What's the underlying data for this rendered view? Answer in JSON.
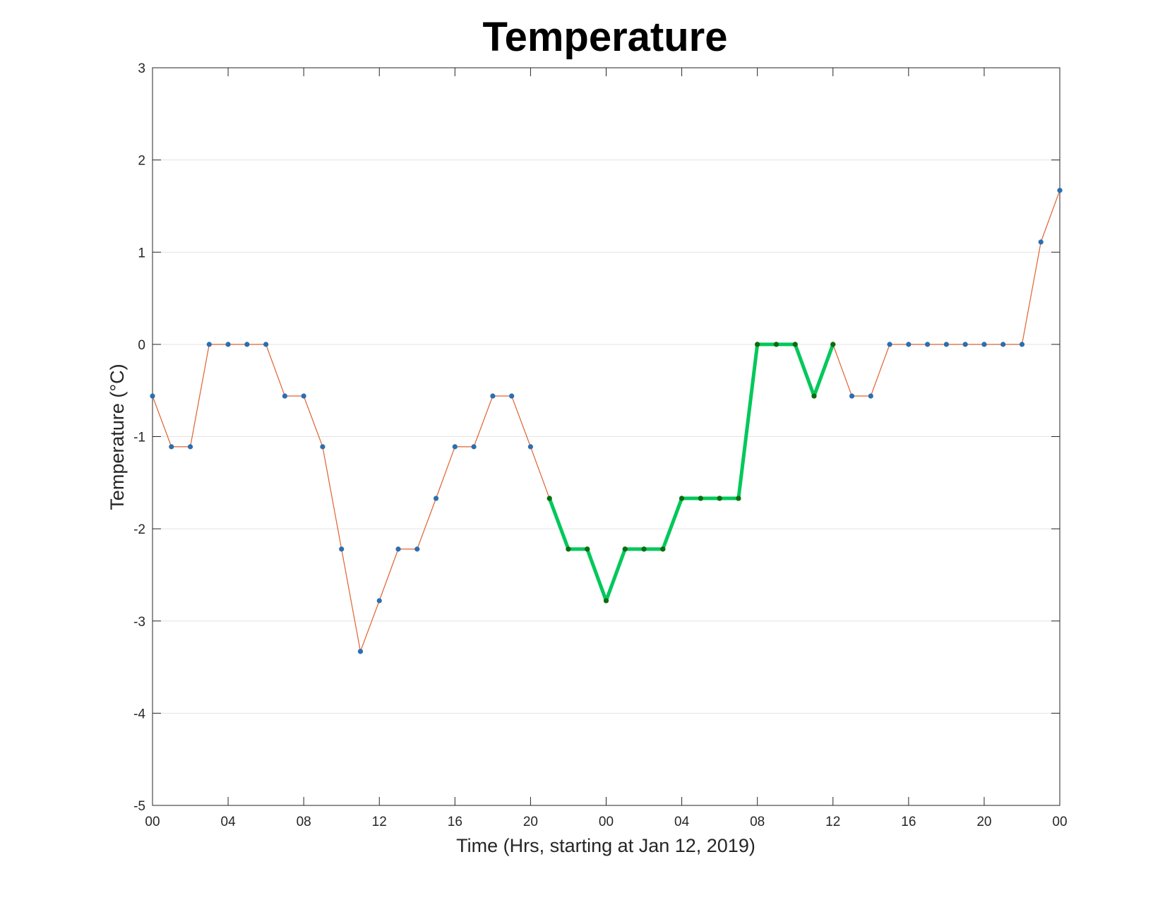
{
  "chart_data": {
    "type": "line",
    "title": "Temperature",
    "xlabel": "Time (Hrs, starting at Jan 12, 2019)",
    "ylabel": "Temperature (°C)",
    "ylim": [
      -5,
      3
    ],
    "xlim": [
      0,
      48
    ],
    "yticks": [
      3,
      2,
      1,
      0,
      -1,
      -2,
      -3,
      -4,
      -5
    ],
    "xticks": [
      {
        "hour": 0,
        "label": "00"
      },
      {
        "hour": 4,
        "label": "04"
      },
      {
        "hour": 8,
        "label": "08"
      },
      {
        "hour": 12,
        "label": "12"
      },
      {
        "hour": 16,
        "label": "16"
      },
      {
        "hour": 20,
        "label": "20"
      },
      {
        "hour": 24,
        "label": "00"
      },
      {
        "hour": 28,
        "label": "04"
      },
      {
        "hour": 32,
        "label": "08"
      },
      {
        "hour": 36,
        "label": "12"
      },
      {
        "hour": 40,
        "label": "16"
      },
      {
        "hour": 44,
        "label": "20"
      },
      {
        "hour": 48,
        "label": "00"
      }
    ],
    "grid": "horizontal",
    "series": [
      {
        "color_line": "#e0622f",
        "color_marker": "#2a6fb0",
        "x": [
          0,
          1,
          2,
          3,
          4,
          5,
          6,
          7,
          8,
          9,
          10,
          11,
          12,
          13,
          14,
          15,
          16,
          17,
          18,
          19,
          20,
          21,
          22,
          23,
          24,
          25,
          26,
          27,
          28,
          29,
          30,
          31,
          32,
          33,
          34,
          35,
          36,
          37,
          38,
          39,
          40,
          41,
          42,
          43,
          44,
          45,
          46,
          47,
          48
        ],
        "y": [
          -0.56,
          -1.11,
          -1.11,
          0,
          0,
          0,
          0,
          -0.56,
          -0.56,
          -1.11,
          -2.22,
          -3.33,
          -2.78,
          -2.22,
          -2.22,
          -1.67,
          -1.11,
          -1.11,
          -0.56,
          -0.56,
          -1.11,
          -1.67,
          -2.22,
          -2.22,
          -2.78,
          -2.22,
          -2.22,
          -2.22,
          -1.67,
          -1.67,
          -1.67,
          -1.67,
          0,
          0,
          0,
          -0.56,
          0,
          -0.56,
          -0.56,
          0,
          0,
          0,
          0,
          0,
          0,
          0,
          0,
          1.11,
          1.67
        ]
      },
      {
        "color_line": "#00c85a",
        "color_marker": "#0a6e0a",
        "x": [
          21,
          22,
          23,
          24,
          25,
          26,
          27,
          28,
          29,
          30,
          31,
          32,
          33,
          34,
          35,
          36
        ],
        "y": [
          -1.67,
          -2.22,
          -2.22,
          -2.78,
          -2.22,
          -2.22,
          -2.22,
          -1.67,
          -1.67,
          -1.67,
          -1.67,
          0,
          0,
          0,
          -0.56,
          0
        ]
      }
    ]
  }
}
